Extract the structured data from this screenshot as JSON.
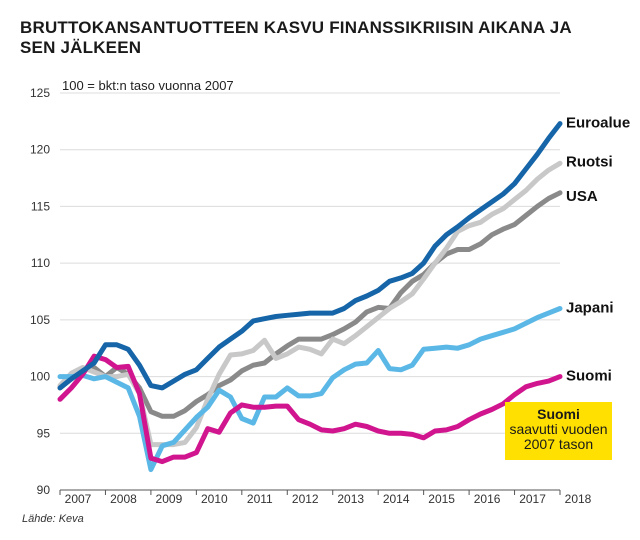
{
  "title": "BRUTTOKANSANTUOTTEEN KASVU FINANSSIKRIISIN AIKANA JA\nSEN JÄLKEEN",
  "source": "Lähde: Keva",
  "callout": {
    "title": "Suomi",
    "text": "saavutti vuoden\n2007 tason"
  },
  "chart_data": {
    "type": "line",
    "unit_label": "100 = bkt:n taso vuonna 2007",
    "ylim": [
      90,
      125
    ],
    "yticks": [
      "125",
      "120",
      "115",
      "110",
      "105",
      "100",
      "95",
      "90"
    ],
    "xlim": [
      2007,
      2018
    ],
    "xticks": [
      "2007",
      "2008",
      "2009",
      "2010",
      "2011",
      "2012",
      "2013",
      "2014",
      "2015",
      "2016",
      "2017",
      "2018"
    ],
    "grid": true,
    "series": [
      {
        "name": "Euroalue",
        "color": "#1565a8",
        "points": [
          [
            2007.0,
            99.0
          ],
          [
            2007.25,
            99.8
          ],
          [
            2007.5,
            100.5
          ],
          [
            2007.75,
            101.2
          ],
          [
            2008.0,
            102.8
          ],
          [
            2008.25,
            102.8
          ],
          [
            2008.5,
            102.4
          ],
          [
            2008.75,
            101.0
          ],
          [
            2009.0,
            99.2
          ],
          [
            2009.25,
            99.0
          ],
          [
            2009.5,
            99.6
          ],
          [
            2009.75,
            100.2
          ],
          [
            2010.0,
            100.6
          ],
          [
            2010.25,
            101.6
          ],
          [
            2010.5,
            102.6
          ],
          [
            2010.75,
            103.3
          ],
          [
            2011.0,
            104.0
          ],
          [
            2011.25,
            104.9
          ],
          [
            2011.5,
            105.1
          ],
          [
            2011.75,
            105.3
          ],
          [
            2012.0,
            105.4
          ],
          [
            2012.25,
            105.5
          ],
          [
            2012.5,
            105.6
          ],
          [
            2012.75,
            105.6
          ],
          [
            2013.0,
            105.6
          ],
          [
            2013.25,
            106.0
          ],
          [
            2013.5,
            106.7
          ],
          [
            2013.75,
            107.1
          ],
          [
            2014.0,
            107.6
          ],
          [
            2014.25,
            108.4
          ],
          [
            2014.5,
            108.7
          ],
          [
            2014.75,
            109.1
          ],
          [
            2015.0,
            110.0
          ],
          [
            2015.25,
            111.5
          ],
          [
            2015.5,
            112.5
          ],
          [
            2015.75,
            113.2
          ],
          [
            2016.0,
            114.0
          ],
          [
            2016.25,
            114.7
          ],
          [
            2016.5,
            115.4
          ],
          [
            2016.75,
            116.1
          ],
          [
            2017.0,
            117.0
          ],
          [
            2017.25,
            118.3
          ],
          [
            2017.5,
            119.6
          ],
          [
            2017.75,
            121.0
          ],
          [
            2018.0,
            122.3
          ]
        ]
      },
      {
        "name": "Ruotsi",
        "color": "#c8c8c8",
        "points": [
          [
            2007.0,
            99.2
          ],
          [
            2007.25,
            100.3
          ],
          [
            2007.5,
            100.8
          ],
          [
            2007.75,
            100.4
          ],
          [
            2008.0,
            100.0
          ],
          [
            2008.25,
            100.0
          ],
          [
            2008.5,
            100.2
          ],
          [
            2008.75,
            98.5
          ],
          [
            2009.0,
            94.0
          ],
          [
            2009.25,
            94.0
          ],
          [
            2009.5,
            94.0
          ],
          [
            2009.75,
            94.2
          ],
          [
            2010.0,
            95.5
          ],
          [
            2010.25,
            98.0
          ],
          [
            2010.5,
            100.2
          ],
          [
            2010.75,
            101.9
          ],
          [
            2011.0,
            102.0
          ],
          [
            2011.25,
            102.3
          ],
          [
            2011.5,
            103.2
          ],
          [
            2011.75,
            101.6
          ],
          [
            2012.0,
            102.0
          ],
          [
            2012.25,
            102.6
          ],
          [
            2012.5,
            102.4
          ],
          [
            2012.75,
            102.0
          ],
          [
            2013.0,
            103.3
          ],
          [
            2013.25,
            102.9
          ],
          [
            2013.5,
            103.6
          ],
          [
            2013.75,
            104.4
          ],
          [
            2014.0,
            105.2
          ],
          [
            2014.25,
            106.0
          ],
          [
            2014.5,
            106.6
          ],
          [
            2014.75,
            107.3
          ],
          [
            2015.0,
            108.6
          ],
          [
            2015.25,
            110.0
          ],
          [
            2015.5,
            111.3
          ],
          [
            2015.75,
            112.8
          ],
          [
            2016.0,
            113.3
          ],
          [
            2016.25,
            113.6
          ],
          [
            2016.5,
            114.3
          ],
          [
            2016.75,
            114.8
          ],
          [
            2017.0,
            115.6
          ],
          [
            2017.25,
            116.4
          ],
          [
            2017.5,
            117.4
          ],
          [
            2017.75,
            118.2
          ],
          [
            2018.0,
            118.8
          ]
        ]
      },
      {
        "name": "USA",
        "color": "#8a8a8a",
        "points": [
          [
            2007.0,
            99.0
          ],
          [
            2007.25,
            99.8
          ],
          [
            2007.5,
            100.5
          ],
          [
            2007.75,
            100.8
          ],
          [
            2008.0,
            100.0
          ],
          [
            2008.25,
            100.8
          ],
          [
            2008.5,
            100.2
          ],
          [
            2008.75,
            99.0
          ],
          [
            2009.0,
            96.9
          ],
          [
            2009.25,
            96.5
          ],
          [
            2009.5,
            96.5
          ],
          [
            2009.75,
            97.0
          ],
          [
            2010.0,
            97.8
          ],
          [
            2010.25,
            98.4
          ],
          [
            2010.5,
            99.2
          ],
          [
            2010.75,
            99.7
          ],
          [
            2011.0,
            100.5
          ],
          [
            2011.25,
            101.0
          ],
          [
            2011.5,
            101.2
          ],
          [
            2011.75,
            102.0
          ],
          [
            2012.0,
            102.7
          ],
          [
            2012.25,
            103.3
          ],
          [
            2012.5,
            103.3
          ],
          [
            2012.75,
            103.3
          ],
          [
            2013.0,
            103.7
          ],
          [
            2013.25,
            104.2
          ],
          [
            2013.5,
            104.8
          ],
          [
            2013.75,
            105.7
          ],
          [
            2014.0,
            106.1
          ],
          [
            2014.25,
            106.0
          ],
          [
            2014.5,
            107.4
          ],
          [
            2014.75,
            108.4
          ],
          [
            2015.0,
            109.0
          ],
          [
            2015.25,
            110.0
          ],
          [
            2015.5,
            110.8
          ],
          [
            2015.75,
            111.2
          ],
          [
            2016.0,
            111.2
          ],
          [
            2016.25,
            111.7
          ],
          [
            2016.5,
            112.5
          ],
          [
            2016.75,
            113.0
          ],
          [
            2017.0,
            113.4
          ],
          [
            2017.25,
            114.2
          ],
          [
            2017.5,
            115.0
          ],
          [
            2017.75,
            115.7
          ],
          [
            2018.0,
            116.2
          ]
        ]
      },
      {
        "name": "Japani",
        "color": "#5bb8e6",
        "points": [
          [
            2007.0,
            100.0
          ],
          [
            2007.25,
            100.0
          ],
          [
            2007.5,
            100.1
          ],
          [
            2007.75,
            99.8
          ],
          [
            2008.0,
            100.0
          ],
          [
            2008.25,
            99.5
          ],
          [
            2008.5,
            99.0
          ],
          [
            2008.75,
            96.5
          ],
          [
            2009.0,
            91.8
          ],
          [
            2009.25,
            93.9
          ],
          [
            2009.5,
            94.2
          ],
          [
            2009.75,
            95.3
          ],
          [
            2010.0,
            96.4
          ],
          [
            2010.25,
            97.3
          ],
          [
            2010.5,
            98.8
          ],
          [
            2010.75,
            98.2
          ],
          [
            2011.0,
            96.3
          ],
          [
            2011.25,
            95.9
          ],
          [
            2011.5,
            98.2
          ],
          [
            2011.75,
            98.2
          ],
          [
            2012.0,
            99.0
          ],
          [
            2012.25,
            98.3
          ],
          [
            2012.5,
            98.3
          ],
          [
            2012.75,
            98.5
          ],
          [
            2013.0,
            99.9
          ],
          [
            2013.25,
            100.6
          ],
          [
            2013.5,
            101.1
          ],
          [
            2013.75,
            101.2
          ],
          [
            2014.0,
            102.3
          ],
          [
            2014.25,
            100.7
          ],
          [
            2014.5,
            100.6
          ],
          [
            2014.75,
            101.0
          ],
          [
            2015.0,
            102.4
          ],
          [
            2015.25,
            102.5
          ],
          [
            2015.5,
            102.6
          ],
          [
            2015.75,
            102.5
          ],
          [
            2016.0,
            102.8
          ],
          [
            2016.25,
            103.3
          ],
          [
            2016.5,
            103.6
          ],
          [
            2016.75,
            103.9
          ],
          [
            2017.0,
            104.2
          ],
          [
            2017.25,
            104.7
          ],
          [
            2017.5,
            105.2
          ],
          [
            2017.75,
            105.6
          ],
          [
            2018.0,
            106.0
          ]
        ]
      },
      {
        "name": "Suomi",
        "color": "#d0158f",
        "points": [
          [
            2007.0,
            98.0
          ],
          [
            2007.25,
            99.0
          ],
          [
            2007.5,
            100.2
          ],
          [
            2007.75,
            101.8
          ],
          [
            2008.0,
            101.5
          ],
          [
            2008.25,
            100.8
          ],
          [
            2008.5,
            100.9
          ],
          [
            2008.75,
            98.5
          ],
          [
            2009.0,
            92.8
          ],
          [
            2009.25,
            92.5
          ],
          [
            2009.5,
            92.9
          ],
          [
            2009.75,
            92.9
          ],
          [
            2010.0,
            93.3
          ],
          [
            2010.25,
            95.4
          ],
          [
            2010.5,
            95.1
          ],
          [
            2010.75,
            96.8
          ],
          [
            2011.0,
            97.5
          ],
          [
            2011.25,
            97.3
          ],
          [
            2011.5,
            97.3
          ],
          [
            2011.75,
            97.4
          ],
          [
            2012.0,
            97.4
          ],
          [
            2012.25,
            96.2
          ],
          [
            2012.5,
            95.8
          ],
          [
            2012.75,
            95.3
          ],
          [
            2013.0,
            95.2
          ],
          [
            2013.25,
            95.4
          ],
          [
            2013.5,
            95.8
          ],
          [
            2013.75,
            95.6
          ],
          [
            2014.0,
            95.2
          ],
          [
            2014.25,
            95.0
          ],
          [
            2014.5,
            95.0
          ],
          [
            2014.75,
            94.9
          ],
          [
            2015.0,
            94.6
          ],
          [
            2015.25,
            95.2
          ],
          [
            2015.5,
            95.3
          ],
          [
            2015.75,
            95.6
          ],
          [
            2016.0,
            96.2
          ],
          [
            2016.25,
            96.7
          ],
          [
            2016.5,
            97.1
          ],
          [
            2016.75,
            97.6
          ],
          [
            2017.0,
            98.4
          ],
          [
            2017.25,
            99.1
          ],
          [
            2017.5,
            99.4
          ],
          [
            2017.75,
            99.6
          ],
          [
            2018.0,
            100.0
          ]
        ]
      }
    ]
  }
}
